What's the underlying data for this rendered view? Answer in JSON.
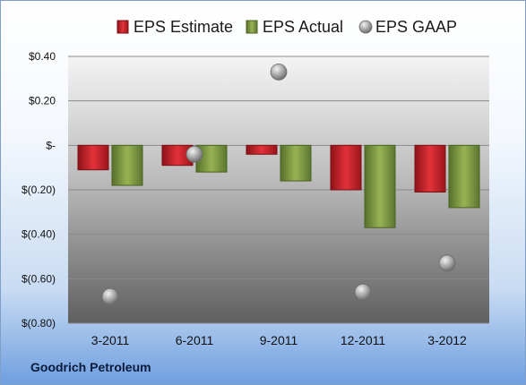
{
  "chart_data": {
    "type": "bar",
    "categories": [
      "3-2011",
      "6-2011",
      "9-2011",
      "12-2011",
      "3-2012"
    ],
    "series": [
      {
        "name": "EPS Estimate",
        "kind": "bar",
        "color": "#cc2229",
        "values": [
          -0.11,
          -0.09,
          -0.04,
          -0.2,
          -0.21
        ]
      },
      {
        "name": "EPS Actual",
        "kind": "bar",
        "color": "#7f9a41",
        "values": [
          -0.18,
          -0.12,
          -0.16,
          -0.37,
          -0.28
        ]
      },
      {
        "name": "EPS GAAP",
        "kind": "scatter",
        "color": "#9a9a9a",
        "values": [
          -0.68,
          -0.04,
          0.33,
          -0.66,
          -0.53
        ]
      }
    ],
    "y_ticks": [
      "$0.40",
      "$0.20",
      "$-",
      "$(0.20)",
      "$(0.40)",
      "$(0.60)",
      "$(0.80)"
    ],
    "ylim": [
      -0.8,
      0.4
    ],
    "legend_position": "top",
    "grid": true
  },
  "footer": {
    "company": "Goodrich Petroleum"
  }
}
